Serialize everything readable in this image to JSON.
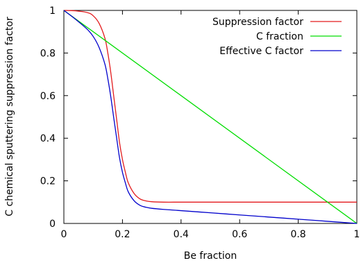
{
  "chart_data": {
    "type": "line",
    "xlabel": "Be fraction",
    "ylabel": "C chemical sputtering suppression factor",
    "xlim": [
      0,
      1
    ],
    "ylim": [
      0,
      1
    ],
    "x_ticks": [
      0,
      0.2,
      0.4,
      0.6,
      0.8,
      1
    ],
    "y_ticks": [
      0,
      0.2,
      0.4,
      0.6,
      0.8,
      1
    ],
    "x_tick_labels": [
      "0",
      "0.2",
      "0.4",
      "0.6",
      "0.8",
      "1"
    ],
    "y_tick_labels": [
      "0",
      "0.2",
      "0.4",
      "0.6",
      "0.8",
      "1"
    ],
    "grid": false,
    "legend_position": "top-right",
    "series": [
      {
        "name": "Suppression factor",
        "color": "#e31a1c",
        "x": [
          0,
          0.04,
          0.08,
          0.1,
          0.12,
          0.14,
          0.15,
          0.16,
          0.17,
          0.18,
          0.19,
          0.2,
          0.21,
          0.22,
          0.24,
          0.26,
          0.28,
          0.3,
          0.34,
          0.4,
          0.5,
          0.6,
          0.7,
          0.8,
          0.9,
          1.0
        ],
        "y": [
          1.0,
          0.998,
          0.99,
          0.975,
          0.94,
          0.87,
          0.8,
          0.71,
          0.6,
          0.49,
          0.38,
          0.3,
          0.24,
          0.19,
          0.14,
          0.115,
          0.106,
          0.102,
          0.1,
          0.1,
          0.1,
          0.1,
          0.1,
          0.1,
          0.1,
          0.1
        ]
      },
      {
        "name": "C fraction",
        "color": "#00dd00",
        "x": [
          0,
          1
        ],
        "y": [
          1.0,
          0.0
        ]
      },
      {
        "name": "Effective C factor",
        "color": "#0000cc",
        "x": [
          0,
          0.04,
          0.08,
          0.1,
          0.12,
          0.14,
          0.15,
          0.16,
          0.17,
          0.18,
          0.19,
          0.2,
          0.21,
          0.22,
          0.24,
          0.26,
          0.28,
          0.3,
          0.34,
          0.4,
          0.5,
          0.6,
          0.7,
          0.8,
          0.9,
          1.0
        ],
        "y": [
          1.0,
          0.958,
          0.911,
          0.878,
          0.827,
          0.748,
          0.68,
          0.596,
          0.498,
          0.402,
          0.308,
          0.24,
          0.19,
          0.148,
          0.106,
          0.085,
          0.076,
          0.071,
          0.066,
          0.06,
          0.05,
          0.04,
          0.03,
          0.02,
          0.01,
          0.0
        ]
      }
    ]
  }
}
